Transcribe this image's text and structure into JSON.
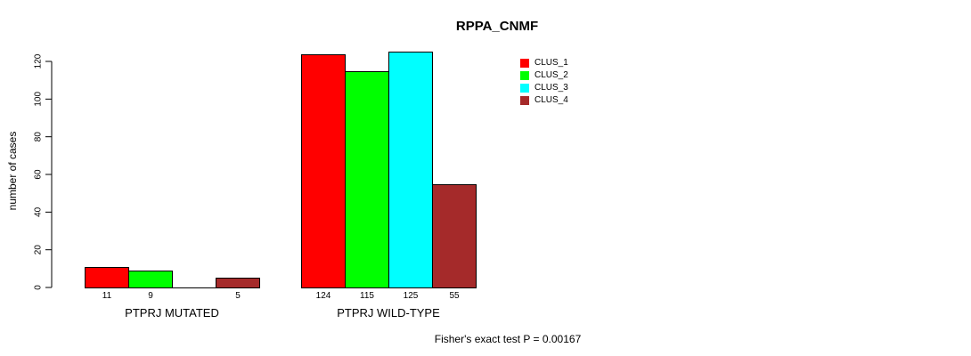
{
  "chart_data": {
    "type": "bar",
    "title": "RPPA_CNMF",
    "xlabel": "",
    "ylabel": "number of cases",
    "ylim": [
      0,
      120
    ],
    "yticks": [
      0,
      20,
      40,
      60,
      80,
      100,
      120
    ],
    "grid": false,
    "legend_position": "top-right",
    "categories": [
      "PTPRJ MUTATED",
      "PTPRJ WILD-TYPE"
    ],
    "series": [
      {
        "name": "CLUS_1",
        "color": "#ff0000",
        "values": [
          11,
          124
        ]
      },
      {
        "name": "CLUS_2",
        "color": "#00ff00",
        "values": [
          9,
          115
        ]
      },
      {
        "name": "CLUS_3",
        "color": "#00ffff",
        "values": [
          0,
          125
        ]
      },
      {
        "name": "CLUS_4",
        "color": "#a52a2a",
        "values": [
          5,
          55
        ]
      }
    ],
    "annotation": "Fisher's exact test P = 0.00167",
    "axis_color": "#000000"
  }
}
